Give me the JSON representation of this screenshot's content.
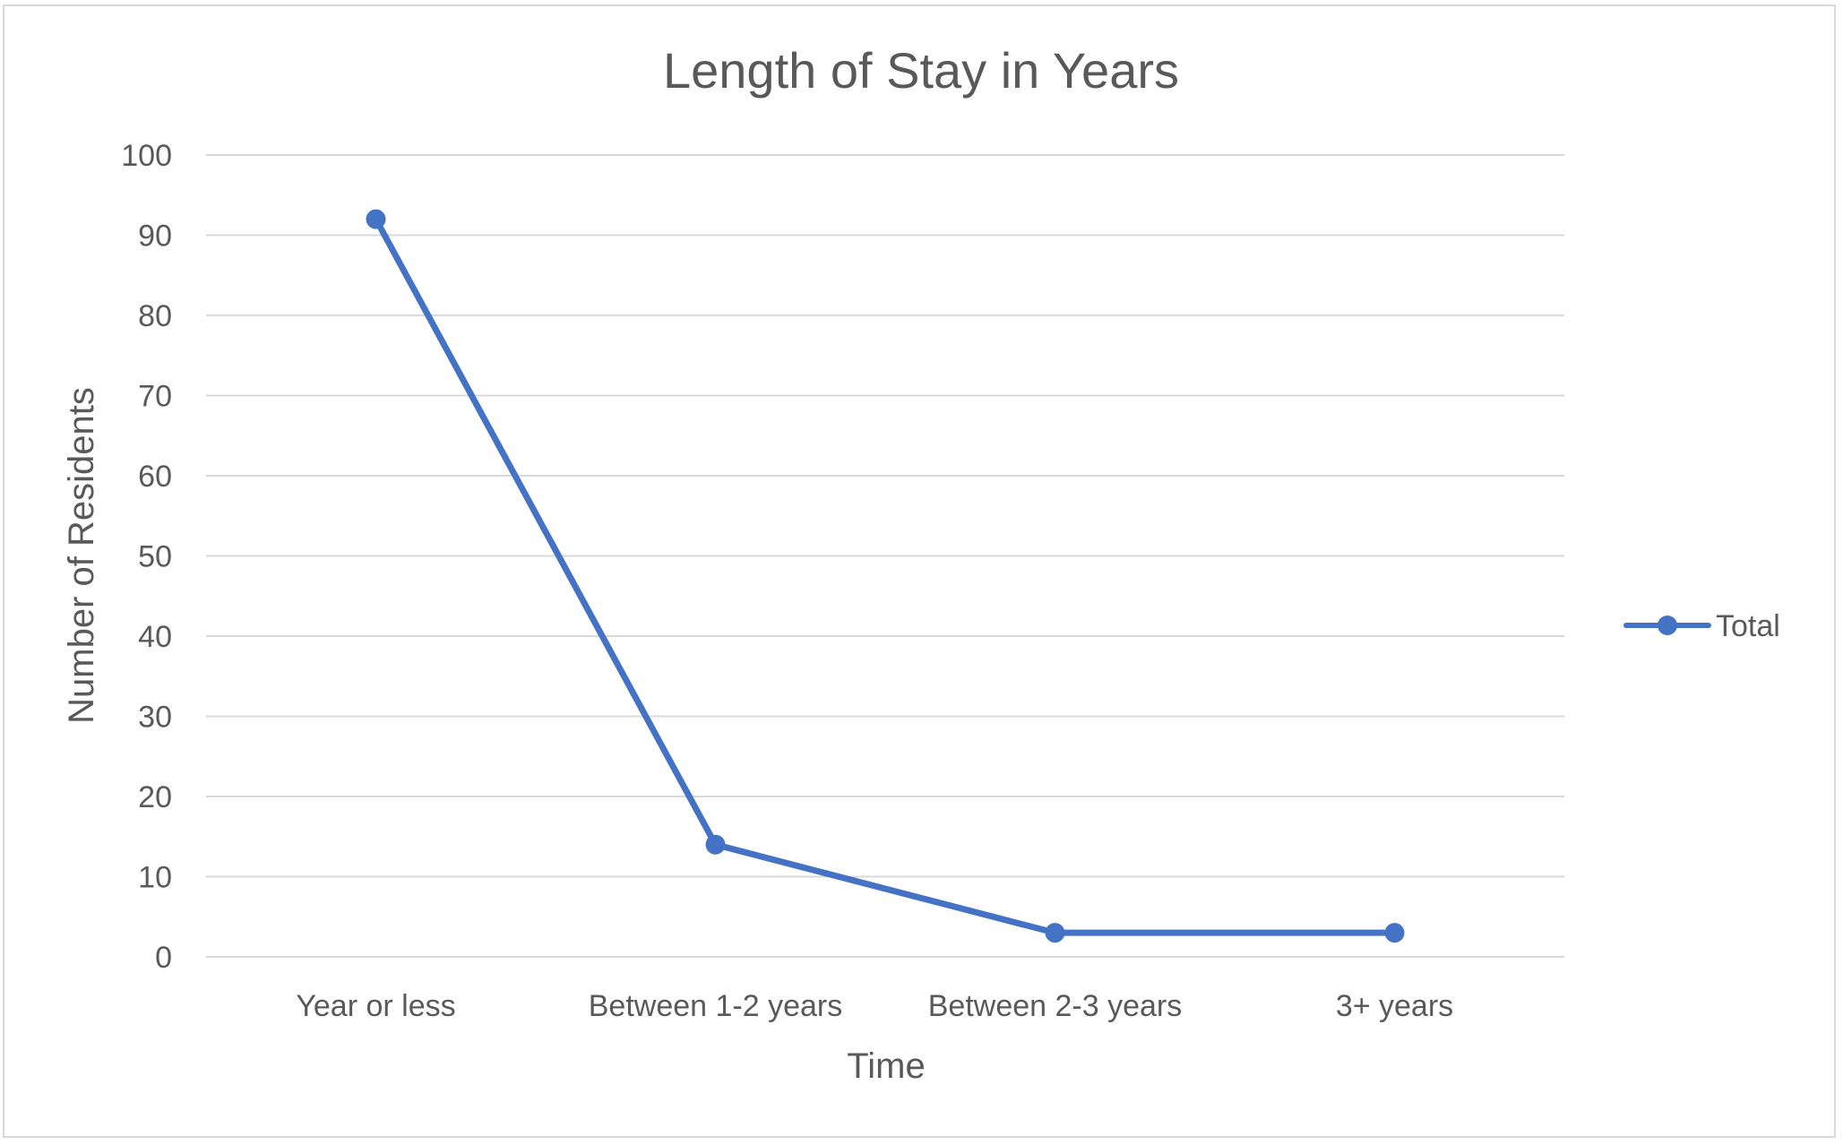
{
  "chart_data": {
    "type": "line",
    "title": "Length of Stay in Years",
    "xlabel": "Time",
    "ylabel": "Number of Residents",
    "categories": [
      "Year or less",
      "Between 1-2 years",
      "Between 2-3 years",
      "3+ years"
    ],
    "series": [
      {
        "name": "Total",
        "values": [
          92,
          14,
          3,
          3
        ],
        "color": "#4472C4"
      }
    ],
    "ylim": [
      0,
      100
    ],
    "yticks": [
      0,
      10,
      20,
      30,
      40,
      50,
      60,
      70,
      80,
      90,
      100
    ],
    "grid": true,
    "legend": "right"
  }
}
